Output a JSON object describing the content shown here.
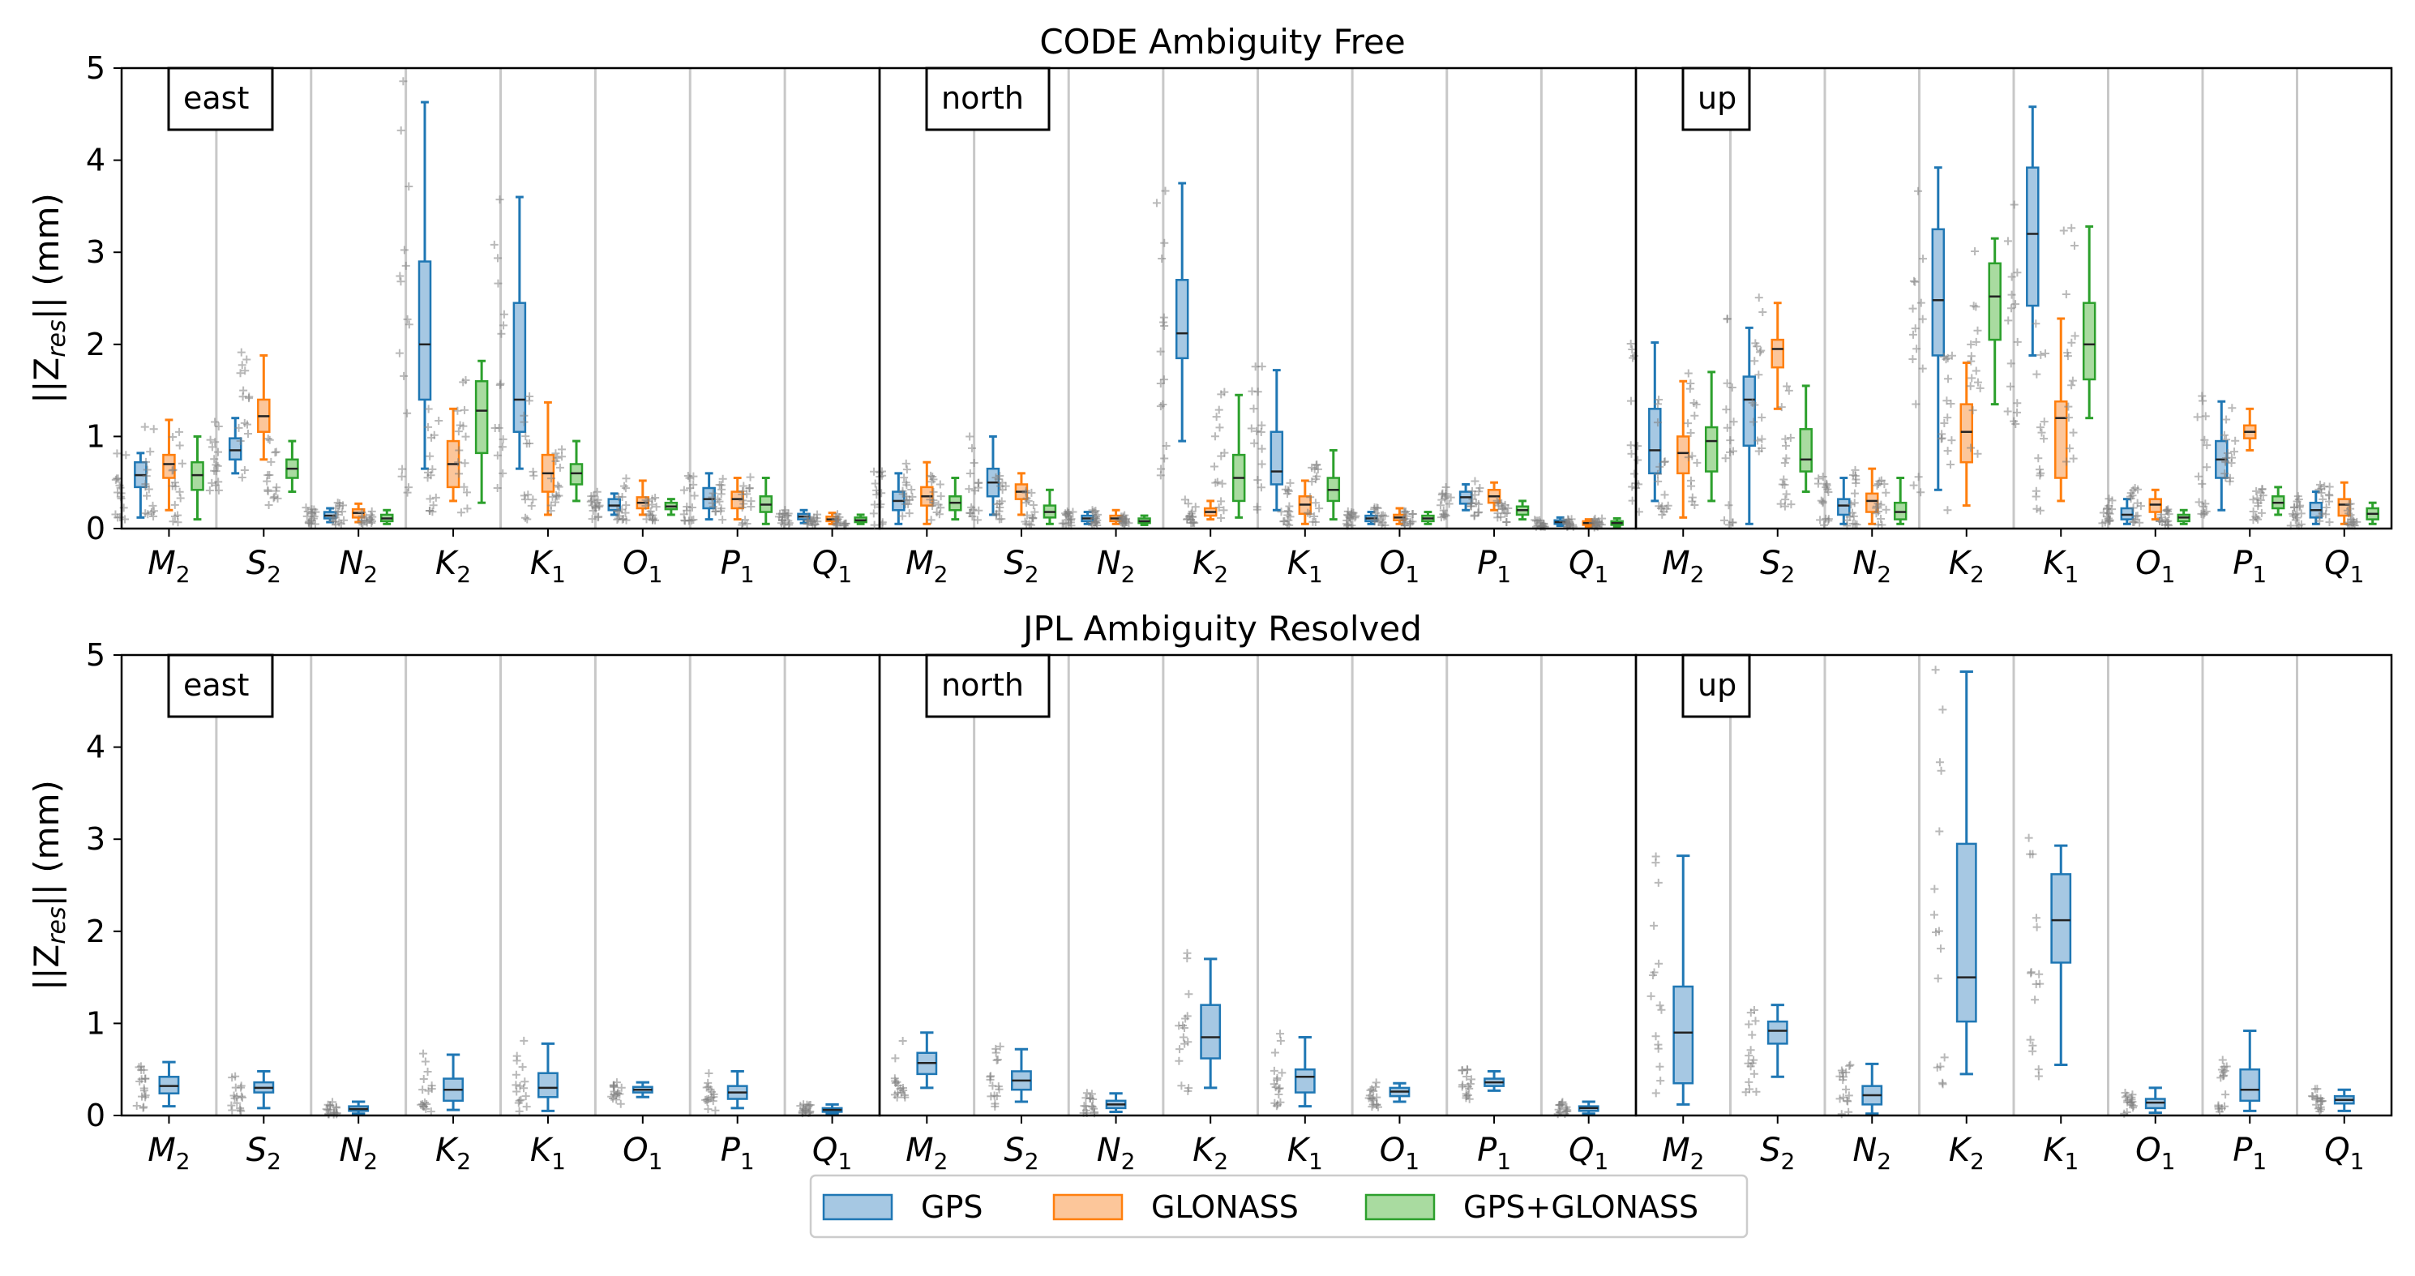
{
  "colors": {
    "GPS": {
      "fill": "#a6c8e3",
      "stroke": "#1f77b4"
    },
    "GLONASS": {
      "fill": "#fcc69a",
      "stroke": "#ff7f0e"
    },
    "GPS+GLONASS": {
      "fill": "#a9dba0",
      "stroke": "#2ca02c"
    },
    "scatter": "#7f7f7f",
    "separator": "#c8c8c8",
    "median": "#222222"
  },
  "legend": [
    "GPS",
    "GLONASS",
    "GPS+GLONASS"
  ],
  "chart_data": [
    {
      "type": "box",
      "title": "CODE Ambiguity Free",
      "ylabel_main": "||Z",
      "ylabel_sub": "res",
      "ylabel_tail": "|| (mm)",
      "ylim": [
        0,
        5
      ],
      "yticks": [
        "0",
        "1",
        "2",
        "3",
        "4",
        "5"
      ],
      "categories": [
        {
          "base": "M",
          "sub": "2"
        },
        {
          "base": "S",
          "sub": "2"
        },
        {
          "base": "N",
          "sub": "2"
        },
        {
          "base": "K",
          "sub": "2"
        },
        {
          "base": "K",
          "sub": "1"
        },
        {
          "base": "O",
          "sub": "1"
        },
        {
          "base": "P",
          "sub": "1"
        },
        {
          "base": "Q",
          "sub": "1"
        }
      ],
      "panels": [
        {
          "label": "east",
          "series": [
            {
              "name": "GPS",
              "boxes": [
                [
                  0.12,
                  0.45,
                  0.58,
                  0.72,
                  0.82
                ],
                [
                  0.6,
                  0.75,
                  0.85,
                  0.98,
                  1.2
                ],
                [
                  0.07,
                  0.11,
                  0.14,
                  0.18,
                  0.22
                ],
                [
                  0.65,
                  1.4,
                  2.0,
                  2.9,
                  4.63
                ],
                [
                  0.65,
                  1.05,
                  1.4,
                  2.45,
                  3.6
                ],
                [
                  0.15,
                  0.2,
                  0.25,
                  0.32,
                  0.38
                ],
                [
                  0.1,
                  0.22,
                  0.32,
                  0.44,
                  0.6
                ],
                [
                  0.06,
                  0.1,
                  0.13,
                  0.16,
                  0.2
                ]
              ]
            },
            {
              "name": "GLONASS",
              "boxes": [
                [
                  0.2,
                  0.55,
                  0.7,
                  0.8,
                  1.18
                ],
                [
                  0.75,
                  1.05,
                  1.22,
                  1.4,
                  1.88
                ],
                [
                  0.07,
                  0.12,
                  0.17,
                  0.21,
                  0.27
                ],
                [
                  0.3,
                  0.45,
                  0.7,
                  0.95,
                  1.3
                ],
                [
                  0.15,
                  0.4,
                  0.6,
                  0.8,
                  1.37
                ],
                [
                  0.15,
                  0.22,
                  0.28,
                  0.34,
                  0.52
                ],
                [
                  0.1,
                  0.22,
                  0.32,
                  0.4,
                  0.55
                ],
                [
                  0.05,
                  0.08,
                  0.1,
                  0.13,
                  0.17
                ]
              ]
            },
            {
              "name": "GPS+GLONASS",
              "boxes": [
                [
                  0.1,
                  0.42,
                  0.58,
                  0.72,
                  1.0
                ],
                [
                  0.4,
                  0.55,
                  0.65,
                  0.75,
                  0.95
                ],
                [
                  0.05,
                  0.08,
                  0.11,
                  0.15,
                  0.2
                ],
                [
                  0.28,
                  0.82,
                  1.28,
                  1.6,
                  1.82
                ],
                [
                  0.3,
                  0.48,
                  0.6,
                  0.7,
                  0.95
                ],
                [
                  0.15,
                  0.21,
                  0.24,
                  0.28,
                  0.32
                ],
                [
                  0.05,
                  0.18,
                  0.26,
                  0.35,
                  0.55
                ],
                [
                  0.05,
                  0.07,
                  0.09,
                  0.12,
                  0.15
                ]
              ]
            }
          ]
        },
        {
          "label": "north",
          "series": [
            {
              "name": "GPS",
              "boxes": [
                [
                  0.05,
                  0.2,
                  0.3,
                  0.4,
                  0.6
                ],
                [
                  0.15,
                  0.35,
                  0.5,
                  0.65,
                  1.0
                ],
                [
                  0.05,
                  0.08,
                  0.11,
                  0.14,
                  0.18
                ],
                [
                  0.95,
                  1.85,
                  2.12,
                  2.7,
                  3.75
                ],
                [
                  0.2,
                  0.48,
                  0.62,
                  1.05,
                  1.72
                ],
                [
                  0.05,
                  0.08,
                  0.11,
                  0.14,
                  0.18
                ],
                [
                  0.2,
                  0.27,
                  0.34,
                  0.4,
                  0.48
                ],
                [
                  0.03,
                  0.05,
                  0.07,
                  0.09,
                  0.12
                ]
              ]
            },
            {
              "name": "GLONASS",
              "boxes": [
                [
                  0.05,
                  0.25,
                  0.35,
                  0.45,
                  0.72
                ],
                [
                  0.15,
                  0.32,
                  0.4,
                  0.48,
                  0.6
                ],
                [
                  0.05,
                  0.08,
                  0.11,
                  0.14,
                  0.2
                ],
                [
                  0.1,
                  0.14,
                  0.18,
                  0.22,
                  0.3
                ],
                [
                  0.05,
                  0.16,
                  0.26,
                  0.35,
                  0.52
                ],
                [
                  0.05,
                  0.09,
                  0.12,
                  0.15,
                  0.22
                ],
                [
                  0.2,
                  0.28,
                  0.35,
                  0.42,
                  0.5
                ],
                [
                  0.02,
                  0.04,
                  0.06,
                  0.08,
                  0.1
                ]
              ]
            },
            {
              "name": "GPS+GLONASS",
              "boxes": [
                [
                  0.1,
                  0.2,
                  0.28,
                  0.35,
                  0.55
                ],
                [
                  0.05,
                  0.12,
                  0.18,
                  0.25,
                  0.42
                ],
                [
                  0.04,
                  0.06,
                  0.08,
                  0.11,
                  0.14
                ],
                [
                  0.12,
                  0.3,
                  0.55,
                  0.8,
                  1.45
                ],
                [
                  0.1,
                  0.3,
                  0.42,
                  0.55,
                  0.85
                ],
                [
                  0.05,
                  0.08,
                  0.11,
                  0.14,
                  0.18
                ],
                [
                  0.1,
                  0.15,
                  0.2,
                  0.24,
                  0.3
                ],
                [
                  0.02,
                  0.04,
                  0.06,
                  0.08,
                  0.11
                ]
              ]
            }
          ]
        },
        {
          "label": "up",
          "series": [
            {
              "name": "GPS",
              "boxes": [
                [
                  0.3,
                  0.6,
                  0.85,
                  1.3,
                  2.02
                ],
                [
                  0.05,
                  0.9,
                  1.4,
                  1.65,
                  2.18
                ],
                [
                  0.05,
                  0.15,
                  0.25,
                  0.32,
                  0.55
                ],
                [
                  0.42,
                  1.88,
                  2.48,
                  3.25,
                  3.92
                ],
                [
                  1.88,
                  2.42,
                  3.2,
                  3.92,
                  4.58
                ],
                [
                  0.05,
                  0.1,
                  0.15,
                  0.22,
                  0.32
                ],
                [
                  0.2,
                  0.55,
                  0.75,
                  0.95,
                  1.38
                ],
                [
                  0.05,
                  0.12,
                  0.2,
                  0.28,
                  0.4
                ]
              ]
            },
            {
              "name": "GLONASS",
              "boxes": [
                [
                  0.12,
                  0.6,
                  0.82,
                  1.0,
                  1.6
                ],
                [
                  1.3,
                  1.75,
                  1.95,
                  2.05,
                  2.45
                ],
                [
                  0.05,
                  0.18,
                  0.3,
                  0.38,
                  0.65
                ],
                [
                  0.25,
                  0.72,
                  1.05,
                  1.35,
                  1.8
                ],
                [
                  0.3,
                  0.55,
                  1.2,
                  1.38,
                  2.28
                ],
                [
                  0.1,
                  0.18,
                  0.26,
                  0.32,
                  0.42
                ],
                [
                  0.85,
                  0.98,
                  1.05,
                  1.12,
                  1.3
                ],
                [
                  0.05,
                  0.14,
                  0.26,
                  0.32,
                  0.5
                ]
              ]
            },
            {
              "name": "GPS+GLONASS",
              "boxes": [
                [
                  0.3,
                  0.62,
                  0.95,
                  1.1,
                  1.7
                ],
                [
                  0.4,
                  0.62,
                  0.75,
                  1.08,
                  1.55
                ],
                [
                  0.05,
                  0.1,
                  0.18,
                  0.28,
                  0.55
                ],
                [
                  1.35,
                  2.05,
                  2.52,
                  2.88,
                  3.15
                ],
                [
                  1.2,
                  1.62,
                  2.0,
                  2.45,
                  3.28
                ],
                [
                  0.05,
                  0.08,
                  0.12,
                  0.15,
                  0.2
                ],
                [
                  0.15,
                  0.22,
                  0.28,
                  0.35,
                  0.45
                ],
                [
                  0.05,
                  0.1,
                  0.16,
                  0.22,
                  0.28
                ]
              ]
            }
          ]
        }
      ]
    },
    {
      "type": "box",
      "title": "JPL Ambiguity Resolved",
      "ylabel_main": "||Z",
      "ylabel_sub": "res",
      "ylabel_tail": "|| (mm)",
      "ylim": [
        0,
        5
      ],
      "yticks": [
        "0",
        "1",
        "2",
        "3",
        "4",
        "5"
      ],
      "categories": [
        {
          "base": "M",
          "sub": "2"
        },
        {
          "base": "S",
          "sub": "2"
        },
        {
          "base": "N",
          "sub": "2"
        },
        {
          "base": "K",
          "sub": "2"
        },
        {
          "base": "K",
          "sub": "1"
        },
        {
          "base": "O",
          "sub": "1"
        },
        {
          "base": "P",
          "sub": "1"
        },
        {
          "base": "Q",
          "sub": "1"
        }
      ],
      "panels": [
        {
          "label": "east",
          "series": [
            {
              "name": "GPS",
              "boxes": [
                [
                  0.1,
                  0.24,
                  0.32,
                  0.42,
                  0.58
                ],
                [
                  0.08,
                  0.25,
                  0.3,
                  0.36,
                  0.48
                ],
                [
                  0.02,
                  0.05,
                  0.07,
                  0.1,
                  0.15
                ],
                [
                  0.06,
                  0.16,
                  0.28,
                  0.4,
                  0.66
                ],
                [
                  0.05,
                  0.2,
                  0.3,
                  0.46,
                  0.78
                ],
                [
                  0.2,
                  0.25,
                  0.28,
                  0.31,
                  0.36
                ],
                [
                  0.08,
                  0.18,
                  0.25,
                  0.32,
                  0.48
                ],
                [
                  0.02,
                  0.04,
                  0.06,
                  0.08,
                  0.12
                ]
              ]
            }
          ]
        },
        {
          "label": "north",
          "series": [
            {
              "name": "GPS",
              "boxes": [
                [
                  0.3,
                  0.45,
                  0.57,
                  0.68,
                  0.9
                ],
                [
                  0.15,
                  0.28,
                  0.38,
                  0.48,
                  0.72
                ],
                [
                  0.04,
                  0.08,
                  0.12,
                  0.16,
                  0.24
                ],
                [
                  0.3,
                  0.62,
                  0.85,
                  1.2,
                  1.7
                ],
                [
                  0.1,
                  0.25,
                  0.42,
                  0.5,
                  0.85
                ],
                [
                  0.15,
                  0.21,
                  0.26,
                  0.3,
                  0.35
                ],
                [
                  0.27,
                  0.32,
                  0.36,
                  0.4,
                  0.48
                ],
                [
                  0.02,
                  0.05,
                  0.08,
                  0.1,
                  0.15
                ]
              ]
            }
          ]
        },
        {
          "label": "up",
          "series": [
            {
              "name": "GPS",
              "boxes": [
                [
                  0.12,
                  0.35,
                  0.9,
                  1.4,
                  2.82
                ],
                [
                  0.42,
                  0.78,
                  0.92,
                  1.02,
                  1.2
                ],
                [
                  0.02,
                  0.12,
                  0.22,
                  0.32,
                  0.56
                ],
                [
                  0.45,
                  1.02,
                  1.5,
                  2.95,
                  4.82
                ],
                [
                  0.55,
                  1.66,
                  2.12,
                  2.62,
                  2.93
                ],
                [
                  0.03,
                  0.08,
                  0.14,
                  0.18,
                  0.3
                ],
                [
                  0.05,
                  0.16,
                  0.28,
                  0.5,
                  0.92
                ],
                [
                  0.05,
                  0.13,
                  0.17,
                  0.21,
                  0.28
                ]
              ]
            }
          ]
        }
      ]
    }
  ]
}
